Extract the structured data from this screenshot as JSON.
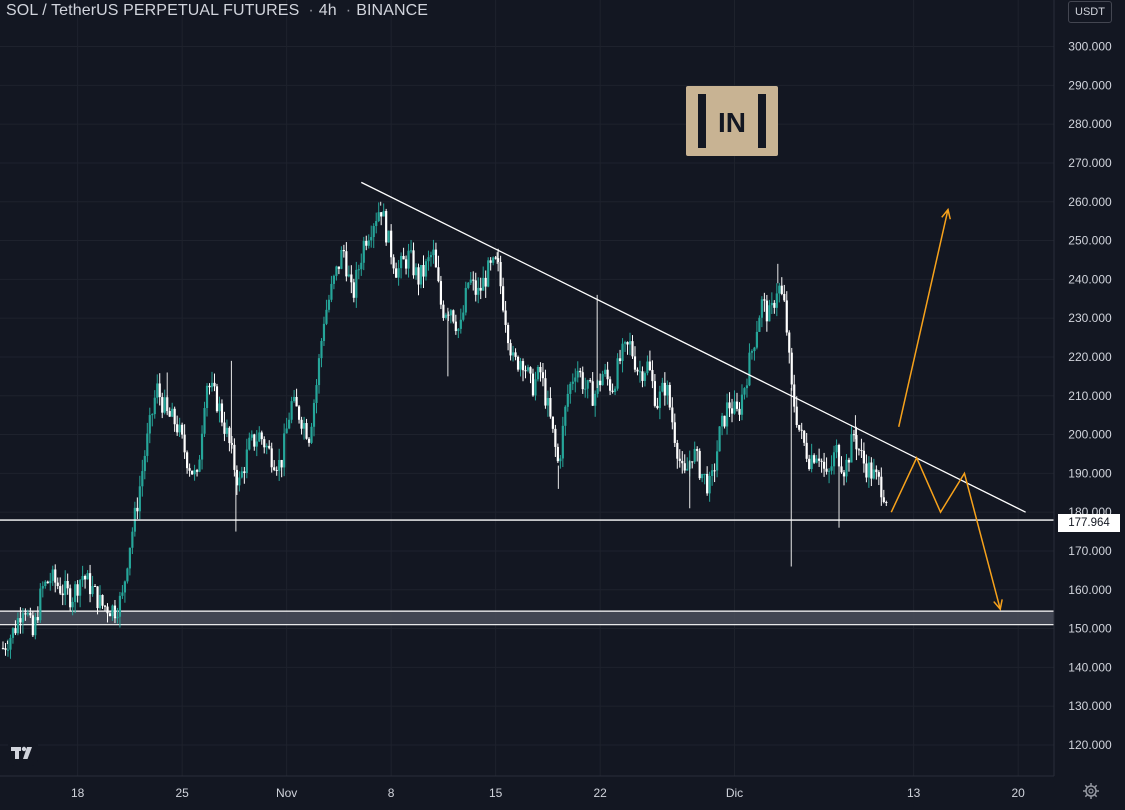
{
  "header": {
    "symbol": "SOL / TetherUS PERPETUAL FUTURES",
    "interval": "4h",
    "exchange": "BINANCE",
    "currency_button": "USDT"
  },
  "current_price_label": "177.964",
  "watermark": {
    "text": "IN",
    "color": "#c8b393"
  },
  "colors": {
    "background": "#131722",
    "grid": "#1e222d",
    "up": "#26a69a",
    "down": "#ffffff",
    "projection": "#f7a21b",
    "lines": "#ffffff",
    "text": "#d1d4dc"
  },
  "icons": {
    "tradingview": "tradingview-logo-icon",
    "settings": "gear-icon"
  },
  "chart_data": {
    "type": "candlestick",
    "y_axis": {
      "ticks": [
        "120.000",
        "130.000",
        "140.000",
        "150.000",
        "160.000",
        "170.000",
        "180.000",
        "190.000",
        "200.000",
        "210.000",
        "220.000",
        "230.000",
        "240.000",
        "250.000",
        "260.000",
        "270.000",
        "280.000",
        "290.000",
        "300.000"
      ],
      "ylim": [
        112,
        312
      ]
    },
    "x_axis": {
      "tick_labels": [
        "18",
        "25",
        "Nov",
        "8",
        "15",
        "22",
        "Dic",
        "13",
        "20"
      ],
      "tick_days": [
        18,
        25,
        32,
        39,
        46,
        53,
        62,
        74,
        81
      ],
      "xlim": [
        12.8,
        83.4
      ],
      "day_origin_note": "day numbers count from 1 Oct"
    },
    "price_path": [
      [
        13.0,
        145
      ],
      [
        13.8,
        150
      ],
      [
        14.4,
        157
      ],
      [
        15.0,
        148
      ],
      [
        15.6,
        160
      ],
      [
        16.2,
        163
      ],
      [
        17.0,
        160
      ],
      [
        17.6,
        158
      ],
      [
        18.3,
        164
      ],
      [
        19.0,
        160
      ],
      [
        19.6,
        156
      ],
      [
        20.5,
        155
      ],
      [
        21.0,
        158
      ],
      [
        21.4,
        170
      ],
      [
        21.9,
        180
      ],
      [
        22.5,
        195
      ],
      [
        23.3,
        212
      ],
      [
        24.0,
        205
      ],
      [
        24.6,
        203
      ],
      [
        25.4,
        193
      ],
      [
        26.0,
        188
      ],
      [
        26.6,
        214
      ],
      [
        27.4,
        208
      ],
      [
        28.0,
        200
      ],
      [
        28.8,
        187
      ],
      [
        29.5,
        197
      ],
      [
        30.2,
        200
      ],
      [
        30.9,
        195
      ],
      [
        31.6,
        192
      ],
      [
        32.3,
        208
      ],
      [
        32.9,
        205
      ],
      [
        33.5,
        200
      ],
      [
        34.0,
        213
      ],
      [
        34.5,
        230
      ],
      [
        35.2,
        240
      ],
      [
        35.8,
        248
      ],
      [
        36.4,
        235
      ],
      [
        37.2,
        250
      ],
      [
        37.8,
        255
      ],
      [
        38.3,
        259
      ],
      [
        38.8,
        250
      ],
      [
        39.4,
        242
      ],
      [
        40.2,
        246
      ],
      [
        40.8,
        240
      ],
      [
        41.2,
        242
      ],
      [
        41.8,
        247
      ],
      [
        42.4,
        232
      ],
      [
        43.0,
        233
      ],
      [
        43.6,
        226
      ],
      [
        44.2,
        240
      ],
      [
        44.8,
        236
      ],
      [
        45.5,
        242
      ],
      [
        46.1,
        244
      ],
      [
        46.6,
        232
      ],
      [
        47.2,
        218
      ],
      [
        47.8,
        220
      ],
      [
        48.4,
        212
      ],
      [
        49.0,
        216
      ],
      [
        49.6,
        205
      ],
      [
        50.2,
        192
      ],
      [
        50.8,
        210
      ],
      [
        51.4,
        218
      ],
      [
        52.0,
        212
      ],
      [
        52.6,
        210
      ],
      [
        53.2,
        216
      ],
      [
        53.8,
        212
      ],
      [
        54.4,
        220
      ],
      [
        55.0,
        223
      ],
      [
        55.6,
        216
      ],
      [
        56.2,
        218
      ],
      [
        56.8,
        208
      ],
      [
        57.4,
        213
      ],
      [
        58.0,
        200
      ],
      [
        58.6,
        188
      ],
      [
        59.2,
        196
      ],
      [
        59.8,
        190
      ],
      [
        60.4,
        186
      ],
      [
        61.0,
        200
      ],
      [
        61.6,
        208
      ],
      [
        62.2,
        205
      ],
      [
        62.8,
        215
      ],
      [
        63.4,
        226
      ],
      [
        63.8,
        234
      ],
      [
        64.4,
        230
      ],
      [
        64.9,
        239
      ],
      [
        65.4,
        232
      ],
      [
        65.8,
        212
      ],
      [
        66.4,
        200
      ],
      [
        67.0,
        194
      ],
      [
        67.6,
        196
      ],
      [
        68.2,
        188
      ],
      [
        68.8,
        196
      ],
      [
        69.4,
        191
      ],
      [
        70.0,
        200
      ],
      [
        70.6,
        193
      ],
      [
        71.2,
        190
      ],
      [
        71.8,
        187
      ],
      [
        72.3,
        183
      ]
    ],
    "wicks": [
      {
        "day": 13.3,
        "low": 146
      },
      {
        "day": 20.5,
        "low": 153
      },
      {
        "day": 24.0,
        "high": 216
      },
      {
        "day": 28.6,
        "low": 175
      },
      {
        "day": 28.3,
        "high": 219
      },
      {
        "day": 38.3,
        "high": 260
      },
      {
        "day": 42.8,
        "low": 215
      },
      {
        "day": 46.1,
        "high": 247
      },
      {
        "day": 50.2,
        "low": 186
      },
      {
        "day": 52.8,
        "high": 236
      },
      {
        "day": 59.0,
        "low": 181
      },
      {
        "day": 64.9,
        "high": 244
      },
      {
        "day": 65.8,
        "low": 166
      },
      {
        "day": 69.0,
        "low": 176
      },
      {
        "day": 70.1,
        "high": 205
      }
    ],
    "resistance_line": {
      "start": [
        37.0,
        265
      ],
      "end": [
        81.5,
        180
      ]
    },
    "support_line": {
      "price": 177.964
    },
    "zone": {
      "from": 151,
      "to": 154.5
    },
    "projection_up": {
      "start": [
        73.0,
        202
      ],
      "end": [
        76.3,
        258
      ]
    },
    "projection_zigzag": [
      [
        72.5,
        180
      ],
      [
        74.2,
        194
      ],
      [
        75.8,
        180
      ],
      [
        77.4,
        190
      ],
      [
        79.8,
        155
      ]
    ],
    "candles_mode": "alternating up/down, mixed"
  }
}
